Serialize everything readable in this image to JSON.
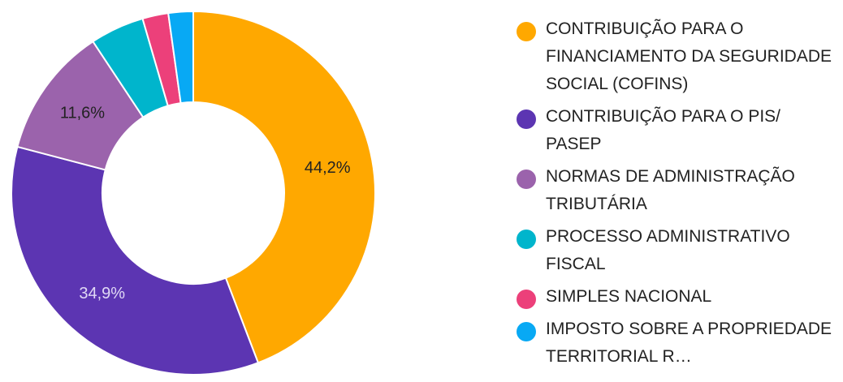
{
  "chart_data": {
    "type": "pie",
    "donut": true,
    "legend_position": "right",
    "series": [
      {
        "name": "CONTRIBUIÇÃO PARA O FINANCIAMENTO DA SEGURIDADE SOCIAL (COFINS)",
        "value": 44.2,
        "label": "44,2%",
        "color": "#FFA800"
      },
      {
        "name": "CONTRIBUIÇÃO PARA O PIS/ PASEP",
        "value": 34.9,
        "label": "34,9%",
        "color": "#5C35B2"
      },
      {
        "name": "NORMAS DE ADMINISTRAÇÃO TRIBUTÁRIA",
        "value": 11.6,
        "label": "11,6%",
        "color": "#9B63AC"
      },
      {
        "name": "PROCESSO ADMINISTRATIVO FISCAL",
        "value": 4.8,
        "label": "",
        "color": "#00B5CC"
      },
      {
        "name": "SIMPLES NACIONAL",
        "value": 2.3,
        "label": "",
        "color": "#EC407A"
      },
      {
        "name": "IMPOSTO SOBRE A PROPRIEDADE TERRITORIAL R…",
        "value": 2.2,
        "label": "",
        "color": "#08A9F4"
      }
    ],
    "label_colors": [
      "#222222",
      "#E0D8F5",
      "#222222",
      "#222222",
      "#222222",
      "#222222"
    ]
  }
}
